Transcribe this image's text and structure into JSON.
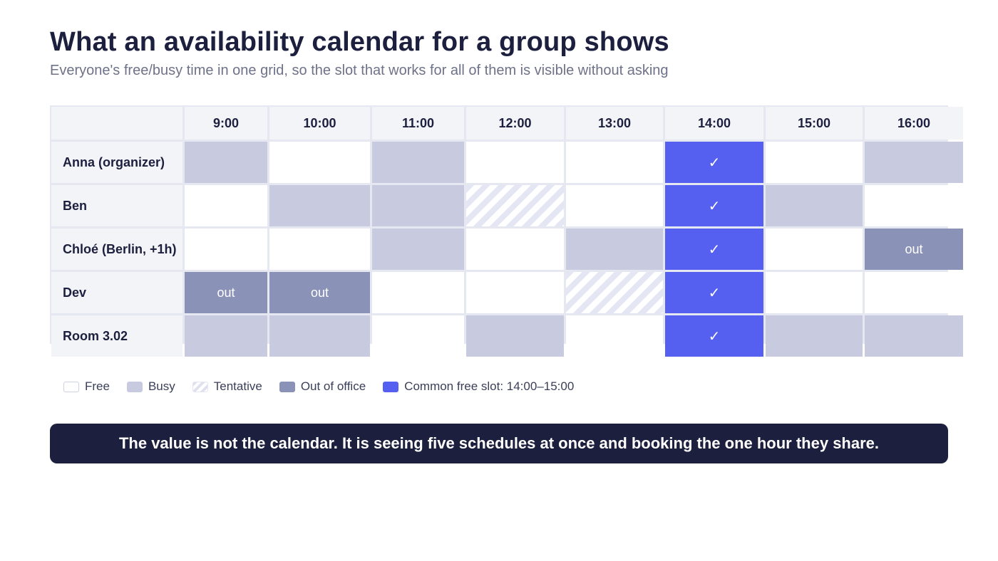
{
  "header": {
    "title": "What an availability calendar for a group shows",
    "subtitle": "Everyone's free/busy time in one grid, so the slot that works for all of them is visible without asking"
  },
  "calendar": {
    "hours": [
      "9:00",
      "10:00",
      "11:00",
      "12:00",
      "13:00",
      "14:00",
      "15:00",
      "16:00"
    ],
    "rows": [
      {
        "name": "Anna (organizer)",
        "slots": [
          "busy",
          "free",
          "busy",
          "free",
          "free",
          "common",
          "free",
          "busy"
        ]
      },
      {
        "name": "Ben",
        "slots": [
          "free",
          "busy",
          "busy",
          "tentative",
          "free",
          "common",
          "busy",
          "free"
        ]
      },
      {
        "name": "Chloé (Berlin, +1h)",
        "slots": [
          "free",
          "free",
          "busy",
          "free",
          "busy",
          "common",
          "free",
          "out"
        ]
      },
      {
        "name": "Dev",
        "slots": [
          "out",
          "out",
          "free",
          "free",
          "tentative",
          "common",
          "free",
          "free"
        ]
      },
      {
        "name": "Room 3.02",
        "slots": [
          "busy",
          "busy",
          "free",
          "busy",
          "free",
          "common",
          "busy",
          "busy"
        ]
      }
    ],
    "out_label": "out",
    "common_mark": "✓"
  },
  "legend": {
    "items": [
      {
        "key": "free",
        "label": "Free"
      },
      {
        "key": "busy",
        "label": "Busy"
      },
      {
        "key": "tentative",
        "label": "Tentative"
      },
      {
        "key": "out",
        "label": "Out of office"
      },
      {
        "key": "common",
        "label": "Common free slot: 14:00–15:00"
      }
    ]
  },
  "banner": {
    "text": "The value is not the calendar. It is seeing five schedules at once and booking the one hour they share."
  },
  "colors": {
    "free": "#ffffff",
    "busy": "#c8cbdf",
    "tentative": "#e4e6f3",
    "out": "#8b92b8",
    "common": "#5560f0",
    "banner": "#1c1f3d"
  }
}
